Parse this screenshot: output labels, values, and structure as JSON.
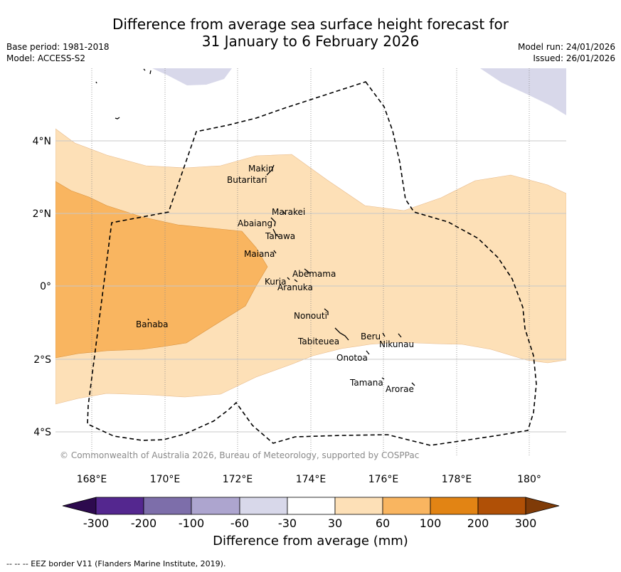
{
  "title_line1": "Difference from average sea surface height forecast for",
  "title_line2": "31 January to 6 February 2026",
  "meta": {
    "base_period": "Base period: 1981-2018",
    "model": "Model: ACCESS-S2",
    "model_run": "Model run: 24/01/2026",
    "issued": "Issued: 26/01/2026"
  },
  "map": {
    "lon_ticks": [
      "168°E",
      "170°E",
      "172°E",
      "174°E",
      "176°E",
      "178°E",
      "180°"
    ],
    "lat_ticks": [
      "4°N",
      "2°N",
      "0°",
      "2°S",
      "4°S"
    ],
    "places": [
      "Makin",
      "Butaritari",
      "Marakei",
      "Abaiang",
      "Tarawa",
      "Maiana",
      "Abemama",
      "Kuria",
      "Aranuka",
      "Nonouti",
      "Banaba",
      "Beru",
      "Nikunau",
      "Tabiteuea",
      "Onotoa",
      "Tamana",
      "Arorae"
    ],
    "copyright": "© Commonwealth of Australia 2026, Bureau of Meteorology, supported by COSPPac",
    "colors": {
      "band_60_100": "#f9b560",
      "band_30_60": "#fde0b7",
      "band_minus60_minus30": "#d8d8ea",
      "eez": "#000000"
    }
  },
  "colorbar": {
    "labels": [
      "-300",
      "-200",
      "-100",
      "-60",
      "-30",
      "30",
      "60",
      "100",
      "200",
      "300"
    ],
    "colors": [
      "#2d0a4e",
      "#54278f",
      "#7d6eaa",
      "#ada5cf",
      "#d8d8ea",
      "#ffffff",
      "#fde0b7",
      "#f9b560",
      "#e28414",
      "#b05006",
      "#7f3b08"
    ],
    "title": "Difference from average (mm)"
  },
  "footer": "--  --  -- EEZ border V11 (Flanders Marine Institute, 2019)."
}
